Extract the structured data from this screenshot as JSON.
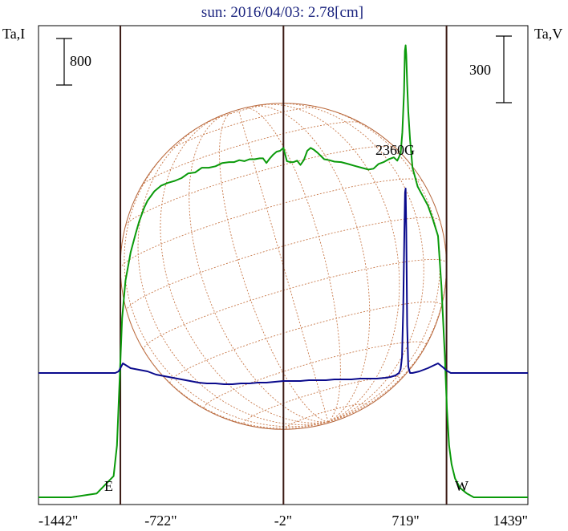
{
  "chart_data": {
    "type": "line",
    "title": "sun: 2016/04/03: 2.78[cm]",
    "y_left_label": "Ta,I",
    "y_right_label": "Ta,V",
    "scale_left": "800",
    "scale_right": "300",
    "x_tick_labels": [
      "-1442\"",
      "-722\"",
      "-2\"",
      "719\"",
      "1439\""
    ],
    "x_range": [
      -1442,
      1439
    ],
    "limb_labels": {
      "east": "E",
      "west": "W"
    },
    "annotation": "2360G",
    "disk_radius_arcsec": 960,
    "series": [
      {
        "color": "#0a9a0a",
        "x": [
          -1442,
          -1250,
          -1100,
          -1000,
          -980,
          -962,
          -950,
          -930,
          -900,
          -870,
          -850,
          -820,
          -800,
          -760,
          -720,
          -680,
          -640,
          -600,
          -560,
          -520,
          -480,
          -440,
          -400,
          -360,
          -320,
          -290,
          -260,
          -230,
          -200,
          -170,
          -140,
          -120,
          -100,
          -80,
          -60,
          -40,
          -20,
          0,
          20,
          40,
          60,
          80,
          100,
          120,
          140,
          160,
          180,
          200,
          220,
          240,
          270,
          300,
          340,
          380,
          420,
          460,
          500,
          530,
          560,
          590,
          620,
          650,
          670,
          690,
          700,
          710,
          715,
          719,
          723,
          728,
          735,
          745,
          760,
          790,
          820,
          850,
          880,
          910,
          930,
          950,
          962,
          975,
          990,
          1010,
          1040,
          1080,
          1120,
          1180,
          1260,
          1340,
          1439
        ],
        "y": [
          0,
          0,
          8,
          45,
          110,
          270,
          380,
          460,
          520,
          560,
          585,
          615,
          630,
          650,
          662,
          668,
          672,
          678,
          688,
          690,
          700,
          700,
          703,
          710,
          712,
          712,
          716,
          714,
          718,
          718,
          720,
          720,
          710,
          720,
          728,
          734,
          736,
          742,
          714,
          712,
          712,
          715,
          706,
          716,
          736,
          742,
          738,
          732,
          725,
          718,
          716,
          713,
          712,
          708,
          704,
          700,
          696,
          698,
          708,
          712,
          718,
          722,
          715,
          730,
          775,
          860,
          948,
          960,
          940,
          880,
          820,
          760,
          700,
          660,
          640,
          620,
          590,
          555,
          450,
          300,
          190,
          110,
          70,
          40,
          20,
          8,
          0,
          0,
          0,
          0,
          0
        ]
      },
      {
        "color": "#0a0a8c",
        "x": [
          -1442,
          -1200,
          -1050,
          -990,
          -970,
          -955,
          -945,
          -930,
          -900,
          -850,
          -800,
          -750,
          -700,
          -650,
          -600,
          -550,
          -500,
          -450,
          -400,
          -350,
          -300,
          -250,
          -200,
          -150,
          -100,
          -50,
          0,
          50,
          100,
          150,
          200,
          250,
          300,
          350,
          400,
          450,
          500,
          550,
          600,
          630,
          660,
          680,
          690,
          698,
          705,
          712,
          716,
          719,
          723,
          728,
          735,
          745,
          760,
          800,
          850,
          880,
          910,
          940,
          960,
          985,
          1010,
          1040,
          1100,
          1200,
          1300,
          1439
        ],
        "y": [
          0,
          0,
          0,
          0,
          2,
          8,
          12,
          10,
          6,
          4,
          2,
          -2,
          -4,
          -6,
          -8,
          -10,
          -12,
          -13,
          -13,
          -14,
          -14,
          -13,
          -13,
          -12,
          -12,
          -11,
          -10,
          -10,
          -10,
          -9,
          -9,
          -9,
          -8,
          -8,
          -8,
          -7,
          -7,
          -7,
          -6,
          -5,
          -3,
          0,
          5,
          20,
          80,
          180,
          225,
          230,
          180,
          60,
          8,
          0,
          0,
          2,
          6,
          9,
          12,
          7,
          3,
          0,
          0,
          0,
          0,
          0,
          0,
          0
        ]
      }
    ]
  }
}
